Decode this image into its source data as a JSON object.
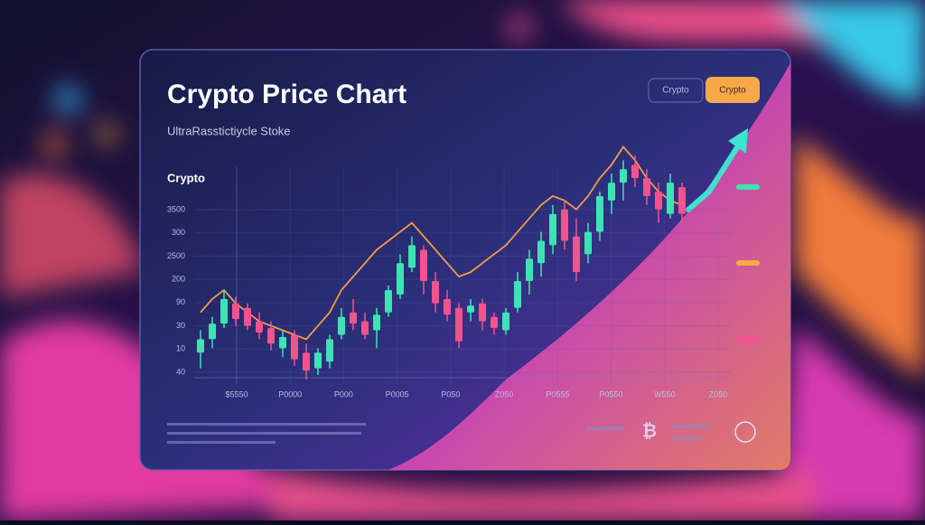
{
  "chart_data": {
    "type": "candlestick",
    "title": "Crypto Price Chart",
    "subtitle": "UltraRasstictiycle Stoke",
    "series_label": "Crypto",
    "open": [
      12,
      18,
      25,
      34,
      32,
      26,
      23,
      14,
      20,
      12,
      5,
      8,
      20,
      30,
      26,
      22,
      30,
      38,
      50,
      58,
      44,
      36,
      32,
      30,
      34,
      28,
      22,
      32,
      44,
      52,
      60,
      76,
      64,
      56,
      66,
      80,
      88,
      96,
      90,
      84,
      74,
      86
    ],
    "high": [
      22,
      28,
      40,
      37,
      34,
      30,
      26,
      22,
      22,
      16,
      14,
      20,
      32,
      36,
      30,
      32,
      42,
      56,
      64,
      60,
      48,
      40,
      34,
      36,
      36,
      30,
      32,
      48,
      58,
      66,
      78,
      80,
      72,
      70,
      84,
      92,
      98,
      100,
      94,
      88,
      92,
      88
    ],
    "low": [
      5,
      14,
      23,
      24,
      22,
      18,
      13,
      10,
      6,
      0,
      2,
      5,
      18,
      22,
      18,
      14,
      28,
      36,
      48,
      38,
      30,
      26,
      14,
      26,
      22,
      20,
      20,
      30,
      38,
      46,
      56,
      58,
      44,
      52,
      62,
      74,
      80,
      86,
      78,
      70,
      72,
      70
    ],
    "close": [
      18,
      25,
      36,
      27,
      24,
      21,
      16,
      19,
      9,
      4,
      12,
      18,
      28,
      25,
      20,
      29,
      40,
      52,
      60,
      44,
      34,
      29,
      17,
      33,
      26,
      23,
      30,
      44,
      54,
      62,
      74,
      62,
      48,
      66,
      82,
      88,
      94,
      90,
      82,
      76,
      88,
      74
    ],
    "trend": [
      30,
      36,
      40,
      34,
      30,
      26,
      24,
      22,
      20,
      18,
      24,
      30,
      40,
      46,
      52,
      58,
      62,
      66,
      70,
      64,
      58,
      52,
      46,
      48,
      52,
      56,
      60,
      66,
      72,
      78,
      82,
      80,
      76,
      82,
      90,
      96,
      104,
      98,
      90,
      84,
      80,
      78
    ],
    "up_color": "#3ee3b4",
    "down_color": "#f2528e",
    "trend_color": "#f59a4a",
    "ylim": [
      0,
      105
    ],
    "y_axis_labels": [
      "3500",
      "300",
      "2500",
      "200",
      "90",
      "30",
      "10",
      "40"
    ],
    "x_axis_labels": [
      "$5550",
      "P0000",
      "P000",
      "P0005",
      "P050",
      "Z050",
      "P0555",
      "P0550",
      "W550",
      "Z050"
    ]
  },
  "buttons": [
    "Crypto",
    "Crypto"
  ],
  "icon_symbol": "₿"
}
